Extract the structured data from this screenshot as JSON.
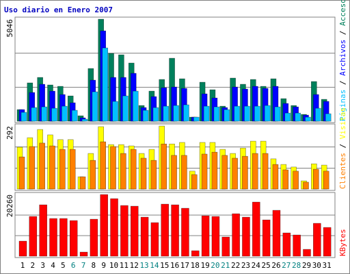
{
  "chart_data": [
    {
      "type": "bar",
      "title": "Uso diario en Enero 2007",
      "separator": "/",
      "ylim": [
        0,
        5046
      ],
      "yticks": [
        5046
      ],
      "gridlines": [
        1682,
        3364
      ],
      "series": [
        {
          "name": "Accesos",
          "color": "#00805c",
          "values": [
            576,
            1897,
            2167,
            1795,
            1727,
            1253,
            271,
            2608,
            5046,
            3353,
            3285,
            2879,
            779,
            1490,
            2066,
            3116,
            2100,
            203,
            1930,
            1558,
            745,
            2134,
            1829,
            2066,
            1727,
            2100,
            1118,
            779,
            339,
            1964,
            1084
          ]
        },
        {
          "name": "Archivos",
          "color": "#0000ff",
          "values": [
            576,
            1422,
            1829,
            1490,
            1321,
            914,
            169,
            2032,
            4470,
            2167,
            2167,
            2371,
            677,
            1219,
            1659,
            1693,
            1625,
            203,
            1355,
            1151,
            677,
            1693,
            1592,
            1727,
            1625,
            1727,
            880,
            711,
            305,
            1321,
            982
          ]
        },
        {
          "name": "Páginas",
          "color": "#00c0ff",
          "values": [
            440,
            677,
            711,
            643,
            745,
            542,
            102,
            1456,
            3624,
            982,
            1253,
            1490,
            542,
            677,
            745,
            779,
            813,
            203,
            745,
            711,
            576,
            745,
            745,
            745,
            779,
            711,
            406,
            406,
            203,
            643,
            372
          ]
        }
      ]
    },
    {
      "type": "bar",
      "separator": "/",
      "ylim": [
        0,
        292
      ],
      "yticks": [
        292
      ],
      "gridlines": [
        97,
        195
      ],
      "series": [
        {
          "name": "Visitas",
          "color": "#ffff00",
          "values": [
            194,
            238,
            276,
            251,
            229,
            229,
            57,
            165,
            289,
            206,
            206,
            200,
            165,
            184,
            292,
            209,
            216,
            83,
            216,
            216,
            184,
            165,
            190,
            222,
            222,
            140,
            114,
            102,
            38,
            117,
            111
          ]
        },
        {
          "name": "Clientes",
          "color": "#ff8000",
          "values": [
            149,
            197,
            213,
            200,
            184,
            184,
            57,
            133,
            219,
            197,
            165,
            184,
            143,
            133,
            209,
            156,
            156,
            67,
            162,
            171,
            156,
            143,
            152,
            165,
            165,
            114,
            89,
            83,
            32,
            92,
            83
          ]
        }
      ]
    },
    {
      "type": "bar",
      "ylim": [
        0,
        20260
      ],
      "yticks": [
        20260
      ],
      "gridlines": [
        6753,
        13507
      ],
      "categories": [
        "1",
        "2",
        "3",
        "4",
        "5",
        "6",
        "7",
        "8",
        "9",
        "10",
        "11",
        "12",
        "13",
        "14",
        "15",
        "16",
        "17",
        "18",
        "19",
        "20",
        "21",
        "22",
        "23",
        "24",
        "25",
        "26",
        "27",
        "28",
        "29",
        "30",
        "31"
      ],
      "category_colors": [
        "#000000",
        "#000000",
        "#000000",
        "#000000",
        "#000000",
        "#008080",
        "#008080",
        "#000000",
        "#000000",
        "#000000",
        "#000000",
        "#000000",
        "#008080",
        "#008080",
        "#000000",
        "#000000",
        "#000000",
        "#000000",
        "#000000",
        "#008080",
        "#008080",
        "#000000",
        "#000000",
        "#000000",
        "#000000",
        "#000000",
        "#008080",
        "#008080",
        "#000000",
        "#000000",
        "#000000"
      ],
      "series": [
        {
          "name": "KBytes",
          "color": "#ff0000",
          "values": [
            4952,
            13056,
            16883,
            12381,
            12381,
            11706,
            1351,
            12156,
            20260,
            18909,
            16658,
            16433,
            12831,
            11030,
            17108,
            16883,
            15758,
            1801,
            13281,
            13056,
            6304,
            13957,
            12831,
            17784,
            11931,
            15083,
            7653,
            6979,
            2251,
            10805,
            9454
          ]
        }
      ]
    }
  ]
}
